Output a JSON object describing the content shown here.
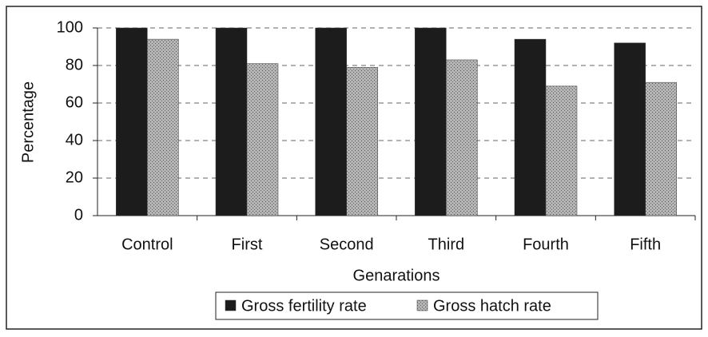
{
  "chart_data": {
    "type": "bar",
    "categories": [
      "Control",
      "First",
      "Second",
      "Third",
      "Fourth",
      "Fifth"
    ],
    "series": [
      {
        "name": "Gross fertility rate",
        "color": "#1c1c1c",
        "values": [
          100,
          100,
          100,
          100,
          94,
          92
        ]
      },
      {
        "name": "Gross hatch rate",
        "color": "#a0a0a0",
        "values": [
          94,
          81,
          79,
          83,
          69,
          71
        ]
      }
    ],
    "xlabel": "Genarations",
    "ylabel": "Percentage",
    "ylim": [
      0,
      100
    ],
    "yticks": [
      0,
      20,
      40,
      60,
      80,
      100
    ],
    "grid": true,
    "legend": "bottom"
  }
}
